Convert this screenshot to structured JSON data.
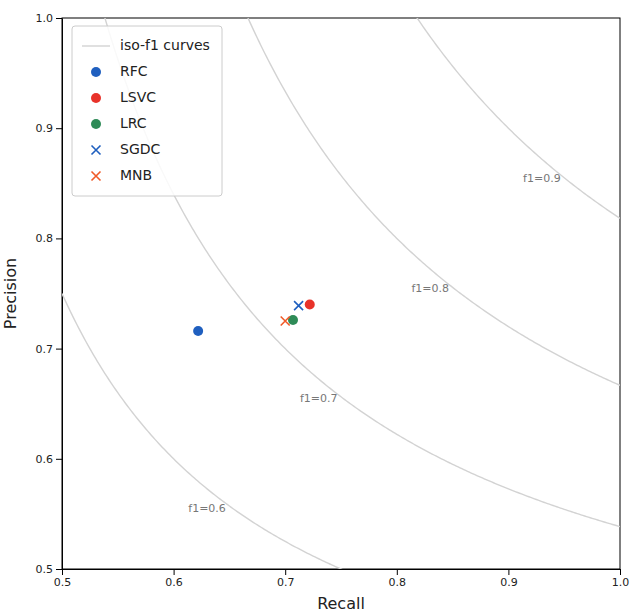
{
  "chart_data": {
    "type": "scatter",
    "x_label": "Recall",
    "y_label": "Precision",
    "xlim": [
      0.5,
      1
    ],
    "ylim": [
      0.5,
      1
    ],
    "xticks": [
      0.5,
      0.6,
      0.7,
      0.8,
      0.9,
      {
        "value": 1,
        "label": "1.0"
      }
    ],
    "yticks": [
      0.5,
      0.6,
      0.7,
      0.8,
      0.9,
      {
        "value": 1,
        "label": "1.0"
      }
    ],
    "grid": false,
    "legend": "upper left",
    "iso_f1": {
      "name": "iso-f1 curves",
      "color": "#d3d3d3",
      "values": [
        0.6,
        0.7,
        0.8,
        0.9
      ],
      "value_labels": [
        "f1=0.6",
        "f1=0.7",
        "f1=0.8",
        "f1=0.9"
      ]
    },
    "series": [
      {
        "name": "RFC",
        "color": "#1f5fbf",
        "marker": "o",
        "x": [
          0.622
        ],
        "values": [
          0.716
        ]
      },
      {
        "name": "LSVC",
        "color": "#e8322a",
        "marker": "o",
        "x": [
          0.722
        ],
        "values": [
          0.74
        ]
      },
      {
        "name": "LRC",
        "color": "#2e8b57",
        "marker": "o",
        "x": [
          0.707
        ],
        "values": [
          0.726
        ]
      },
      {
        "name": "SGDC",
        "color": "#1f5fbf",
        "marker": "x",
        "x": [
          0.712
        ],
        "values": [
          0.739
        ]
      },
      {
        "name": "MNB",
        "color": "#f05a28",
        "marker": "x",
        "x": [
          0.7
        ],
        "values": [
          0.725
        ]
      }
    ]
  }
}
